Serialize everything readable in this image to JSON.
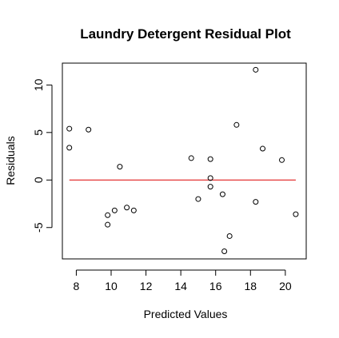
{
  "chart_data": {
    "type": "scatter",
    "title": "Laundry Detergent Residual Plot",
    "xlabel": "Predicted Values",
    "ylabel": "Residuals",
    "xlim": [
      7.2,
      21.2
    ],
    "ylim": [
      -8.3,
      12.3
    ],
    "xticks": [
      8,
      10,
      12,
      14,
      16,
      18,
      20
    ],
    "yticks": [
      -5,
      0,
      5,
      10
    ],
    "grid": false,
    "reference_line": {
      "y": 0,
      "x_from": 7.6,
      "x_to": 20.6,
      "color": "#dd0000"
    },
    "point_color": "#000000",
    "points": [
      {
        "x": 7.6,
        "y": 5.4
      },
      {
        "x": 7.6,
        "y": 3.4
      },
      {
        "x": 8.7,
        "y": 5.3
      },
      {
        "x": 9.8,
        "y": -3.7
      },
      {
        "x": 9.8,
        "y": -4.7
      },
      {
        "x": 10.2,
        "y": -3.2
      },
      {
        "x": 10.5,
        "y": 1.4
      },
      {
        "x": 10.9,
        "y": -2.9
      },
      {
        "x": 11.3,
        "y": -3.2
      },
      {
        "x": 14.6,
        "y": 2.3
      },
      {
        "x": 15.0,
        "y": -2.0
      },
      {
        "x": 15.7,
        "y": 2.2
      },
      {
        "x": 15.7,
        "y": 0.2
      },
      {
        "x": 15.7,
        "y": -0.7
      },
      {
        "x": 16.4,
        "y": -1.5
      },
      {
        "x": 16.5,
        "y": -7.5
      },
      {
        "x": 16.8,
        "y": -5.9
      },
      {
        "x": 17.2,
        "y": 5.8
      },
      {
        "x": 18.3,
        "y": 11.6
      },
      {
        "x": 18.3,
        "y": -2.3
      },
      {
        "x": 18.7,
        "y": 3.3
      },
      {
        "x": 19.8,
        "y": 2.1
      },
      {
        "x": 20.6,
        "y": -3.6
      }
    ]
  }
}
